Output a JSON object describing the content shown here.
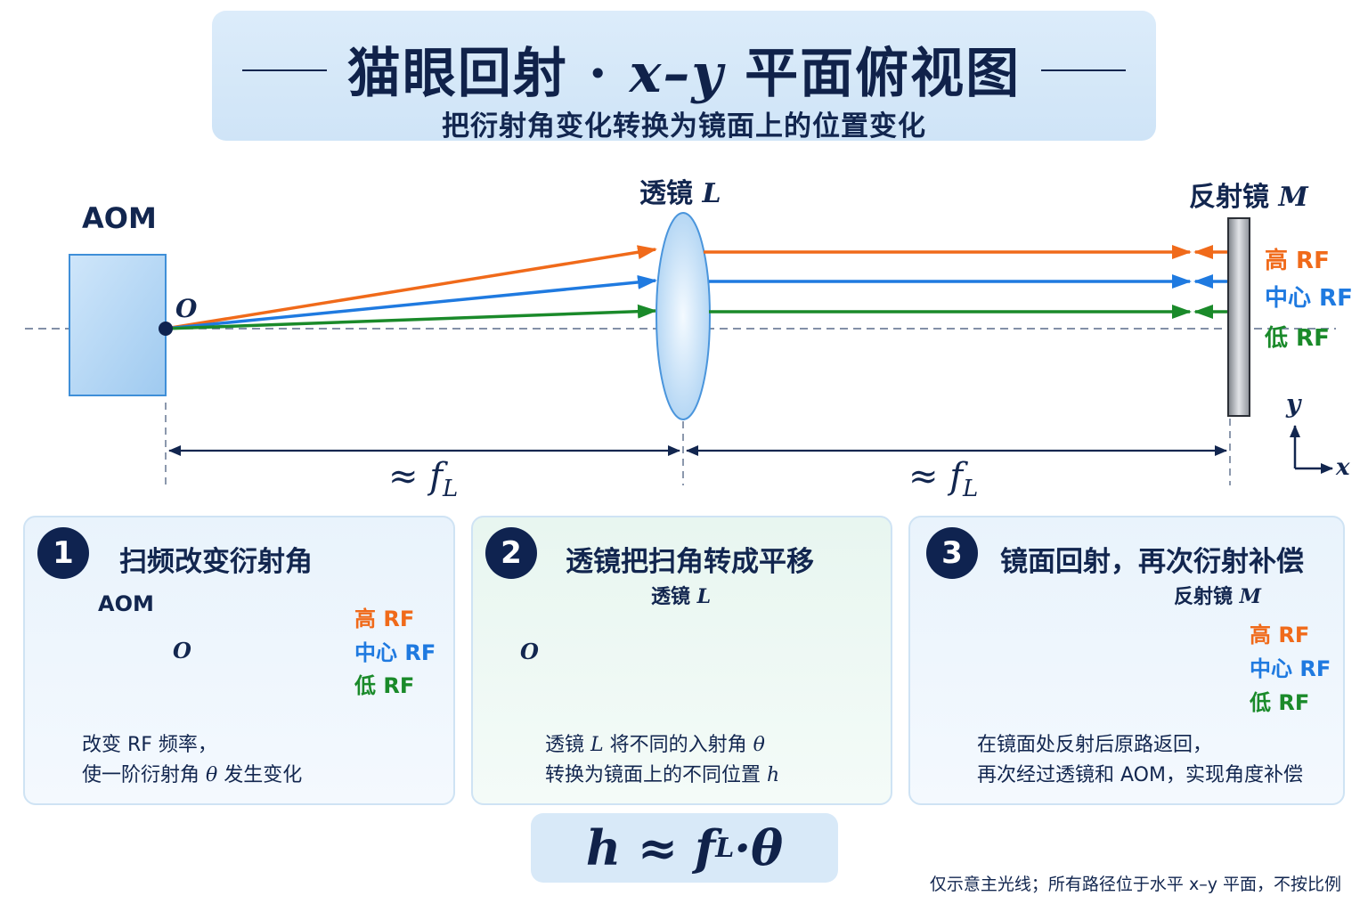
{
  "title": {
    "main_prefix": "猫眼回射 · ",
    "main_math": "x–y",
    "main_suffix": " 平面俯视图",
    "subtitle": "把衍射角变化转换为镜面上的位置变化"
  },
  "diagram": {
    "aom_label": "AOM",
    "origin_label": "O",
    "lens_label": "透镜 ",
    "lens_symbol": "L",
    "mirror_label": "反射镜 ",
    "mirror_symbol": "M",
    "rf_high": "高 RF",
    "rf_center": "中心 RF",
    "rf_low": "低 RF",
    "distance_label_1": "≈ f",
    "distance_label_2": "≈ f",
    "distance_sub": "L",
    "axis_x": "x",
    "axis_y": "y"
  },
  "panels": [
    {
      "number": "1",
      "title": "扫频改变衍射角",
      "aom_label": "AOM",
      "origin_label": "O",
      "rf_high": "高 RF",
      "rf_center": "中心 RF",
      "rf_low": "低 RF",
      "desc_line1": "改变 RF 频率，",
      "desc_line2_a": "使一阶衍射角 ",
      "desc_line2_sym": "θ",
      "desc_line2_b": " 发生变化"
    },
    {
      "number": "2",
      "title": "透镜把扫角转成平移",
      "lens_label": "透镜 ",
      "lens_symbol": "L",
      "origin_label": "O",
      "desc_line1_a": "透镜 ",
      "desc_line1_sym": "L",
      "desc_line1_b": " 将不同的入射角 ",
      "desc_line1_sym2": "θ",
      "desc_line2_a": "转换为镜面上的不同位置 ",
      "desc_line2_sym": "h"
    },
    {
      "number": "3",
      "title": "镜面回射，再次衍射补偿",
      "mirror_label": "反射镜 ",
      "mirror_symbol": "M",
      "rf_high": "高 RF",
      "rf_center": "中心 RF",
      "rf_low": "低 RF",
      "desc_line1": "在镜面处反射后原路返回，",
      "desc_line2": "再次经过透镜和 AOM，实现角度补偿"
    }
  ],
  "formula": {
    "lhs": "h ≈ f",
    "sub": "L",
    "rhs": "·θ"
  },
  "footnote": "仅示意主光线；所有路径位于水平 x–y 平面，不按比例",
  "colors": {
    "high_rf": "#f06a1a",
    "center_rf": "#1f7ae0",
    "low_rf": "#1a8a2a",
    "navy": "#12264f"
  }
}
